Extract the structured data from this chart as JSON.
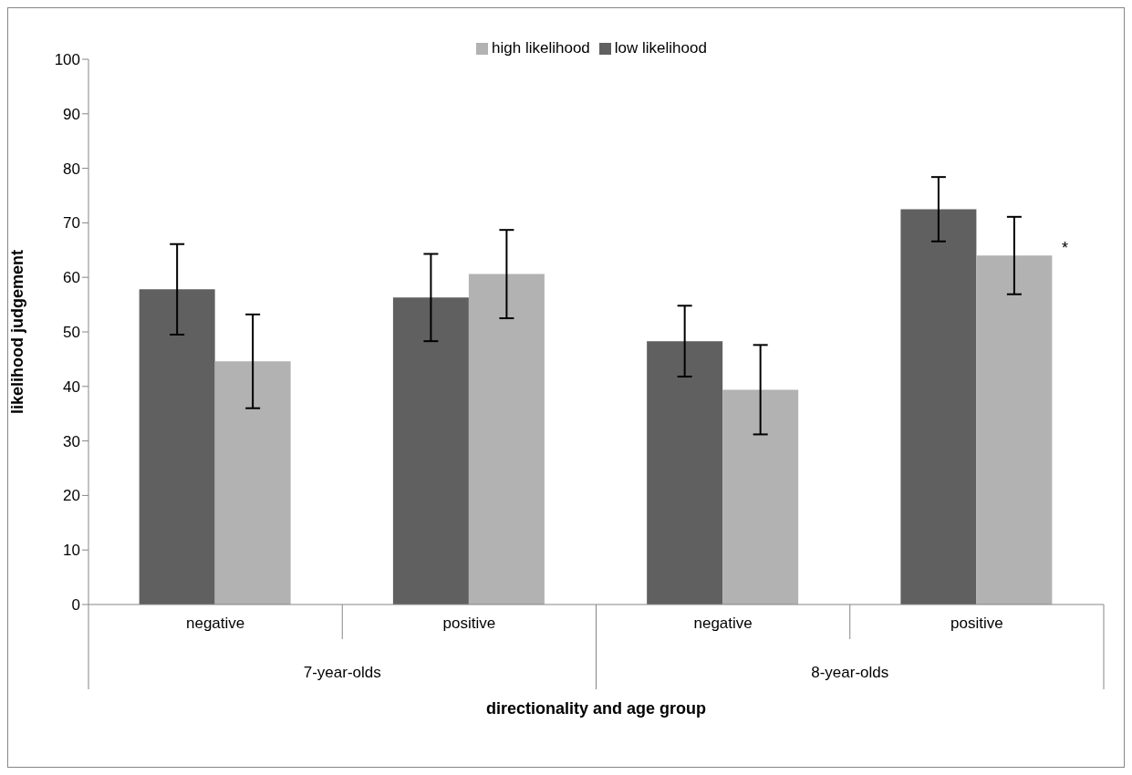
{
  "chart_data": {
    "type": "bar",
    "xlabel": "directionality and age group",
    "ylabel": "likelihood judgement",
    "categories": [
      "negative",
      "positive",
      "negative",
      "positive"
    ],
    "series": [
      {
        "name": "low likelihood",
        "color": "#606060",
        "values": [
          57.8,
          56.3,
          48.3,
          72.5
        ],
        "errors": [
          8.3,
          8,
          6.5,
          5.9
        ]
      },
      {
        "name": "high likelihood",
        "color": "#b2b2b2",
        "values": [
          44.6,
          60.6,
          39.4,
          64
        ],
        "errors": [
          8.6,
          8.1,
          8.2,
          7.1
        ]
      }
    ],
    "ylim": [
      0,
      100
    ],
    "yticks": [
      0,
      10,
      20,
      30,
      40,
      50,
      60,
      70,
      80,
      90,
      100
    ],
    "grid": false,
    "legend": "top",
    "annotations": [
      "7-year-olds",
      "8-year-olds",
      "*"
    ]
  }
}
